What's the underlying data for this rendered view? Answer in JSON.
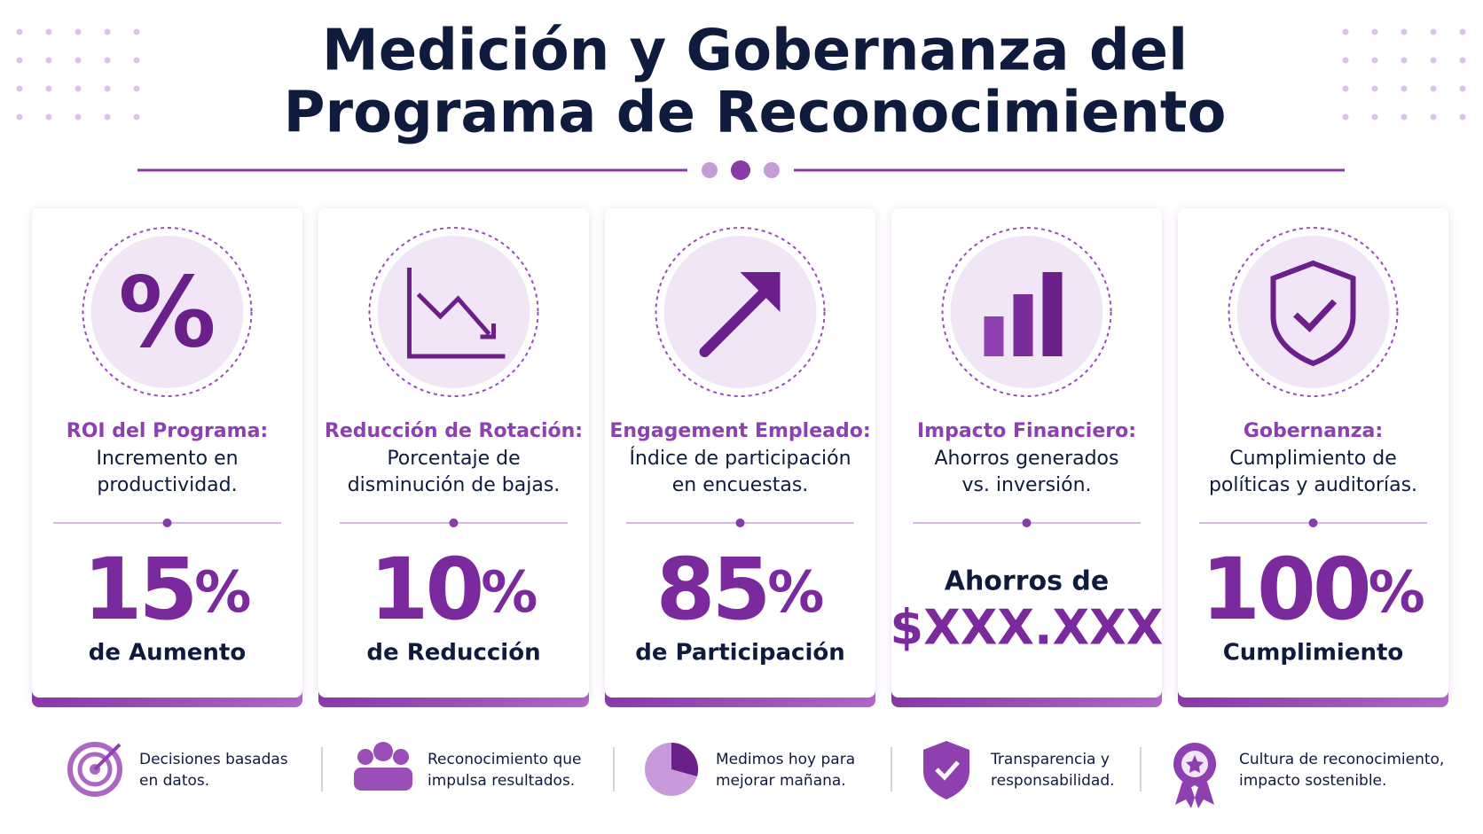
{
  "header": {
    "title_lines": [
      "Medición y Gobernanza del",
      "Programa de Reconocimiento"
    ]
  },
  "cards": [
    {
      "label": "ROI del Programa:",
      "description": [
        "Incremento en",
        "productividad."
      ],
      "value": 15,
      "unit": "%",
      "caption": "de Aumento"
    },
    {
      "label": "Reducción de Rotación:",
      "description": [
        "Porcentaje de",
        "disminución de bajas."
      ],
      "value": 10,
      "unit": "%",
      "caption": "de Reducción"
    },
    {
      "label": "Engagement Empleado:",
      "description": [
        "Índice de participación",
        "en encuestas."
      ],
      "value": 85,
      "unit": "%",
      "caption": "de Participación"
    },
    {
      "label": "Impacto Financiero:",
      "description": [
        "Ahorros generados",
        "vs. inversión."
      ],
      "prefix": "Ahorros de",
      "value": "$XXX.XXX"
    },
    {
      "label": "Gobernanza:",
      "description": [
        "Cumplimiento de",
        "políticas y auditorías."
      ],
      "value": 100,
      "unit": "%",
      "caption": "Cumplimiento"
    }
  ],
  "footer": [
    [
      "Decisiones basadas",
      "en datos."
    ],
    [
      "Reconocimiento que",
      "impulsa resultados."
    ],
    [
      "Medimos hoy para",
      "mejorar mañana."
    ],
    [
      "Transparencia y",
      "responsabilidad."
    ],
    [
      "Cultura de reconocimiento,",
      "impacto sostenible."
    ]
  ]
}
